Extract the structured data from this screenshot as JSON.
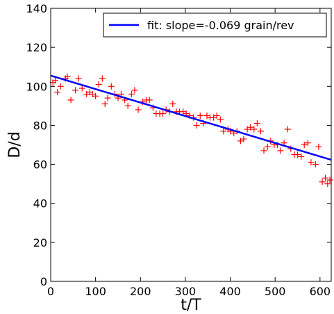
{
  "chart_data": {
    "type": "scatter",
    "title": "",
    "xlabel": "t/T",
    "ylabel": "D/d",
    "xlim": [
      0,
      625
    ],
    "ylim": [
      0,
      140
    ],
    "xticks": [
      0,
      100,
      200,
      300,
      400,
      500,
      600
    ],
    "yticks": [
      0,
      20,
      40,
      60,
      80,
      100,
      120,
      140
    ],
    "grid": false,
    "legend": {
      "placement": "top-right",
      "entries": [
        "fit: slope=-0.069 grain/rev"
      ]
    },
    "series": [
      {
        "type": "scatter",
        "marker": "+",
        "color": "#ff0000",
        "x": [
          5,
          10,
          15,
          22,
          33,
          37,
          45,
          55,
          62,
          70,
          80,
          87,
          93,
          100,
          107,
          115,
          121,
          127,
          135,
          143,
          150,
          157,
          165,
          172,
          180,
          187,
          195,
          205,
          213,
          220,
          228,
          235,
          243,
          250,
          257,
          265,
          272,
          280,
          287,
          295,
          302,
          310,
          318,
          325,
          333,
          340,
          348,
          355,
          363,
          370,
          378,
          385,
          395,
          400,
          408,
          415,
          423,
          430,
          438,
          445,
          453,
          460,
          468,
          475,
          483,
          490,
          498,
          505,
          512,
          520,
          528,
          535,
          543,
          550,
          558,
          565,
          573,
          580,
          590,
          597,
          605,
          612,
          617,
          622
        ],
        "y": [
          102,
          103,
          97,
          100,
          104,
          105,
          93,
          98,
          104,
          99,
          96,
          97,
          96,
          95,
          101,
          104,
          91,
          94,
          100,
          96,
          94,
          96,
          93,
          90,
          96,
          98,
          88,
          92,
          93,
          93,
          89,
          86,
          86,
          86,
          88,
          87,
          91,
          87,
          87,
          87,
          86,
          85,
          84,
          80,
          85,
          81,
          85,
          84,
          84,
          85,
          83,
          77,
          78,
          77,
          76,
          77,
          72,
          73,
          78,
          79,
          78,
          81,
          77,
          67,
          69,
          72,
          70,
          70,
          67,
          71,
          78,
          68,
          65,
          65,
          64,
          70,
          71,
          61,
          60,
          69,
          51,
          53,
          50,
          52
        ]
      },
      {
        "type": "line",
        "name": "fit: slope=-0.069 grain/rev",
        "color": "#0000ff",
        "x": [
          0,
          625
        ],
        "y": [
          105.5,
          62.3
        ]
      }
    ]
  }
}
